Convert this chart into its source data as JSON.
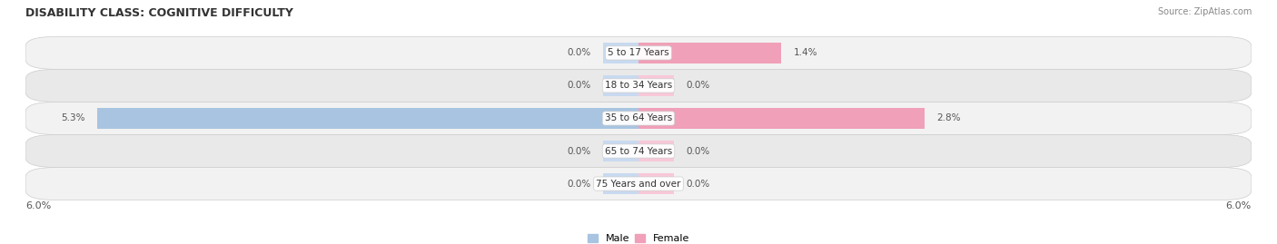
{
  "title": "DISABILITY CLASS: COGNITIVE DIFFICULTY",
  "source": "Source: ZipAtlas.com",
  "categories": [
    "5 to 17 Years",
    "18 to 34 Years",
    "35 to 64 Years",
    "65 to 74 Years",
    "75 Years and over"
  ],
  "male_values": [
    0.0,
    0.0,
    5.3,
    0.0,
    0.0
  ],
  "female_values": [
    1.4,
    0.0,
    2.8,
    0.0,
    0.0
  ],
  "x_max": 6.0,
  "male_color": "#a8c4e0",
  "female_color": "#f0a0b8",
  "male_stub_color": "#c8daf0",
  "female_stub_color": "#f8c8d8",
  "row_colors": [
    "#f2f2f2",
    "#e9e9e9"
  ],
  "label_color": "#555555",
  "title_color": "#333333",
  "source_color": "#888888",
  "bar_height": 0.62,
  "stub_value": 0.35,
  "figsize": [
    14.06,
    2.69
  ],
  "dpi": 100
}
